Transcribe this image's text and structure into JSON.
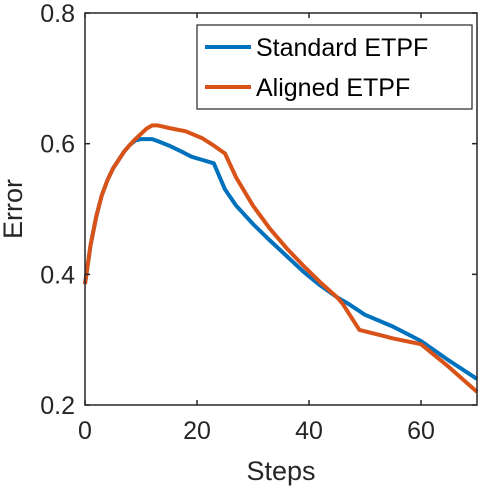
{
  "chart_data": {
    "type": "line",
    "xlabel": "Steps",
    "ylabel": "Error",
    "xlim": [
      0,
      70
    ],
    "ylim": [
      0.2,
      0.8
    ],
    "xticks": [
      0,
      20,
      40,
      60
    ],
    "yticks": [
      0.2,
      0.4,
      0.6,
      0.8
    ],
    "xtick_labels": [
      "0",
      "20",
      "40",
      "60"
    ],
    "ytick_labels": [
      "0.2",
      "0.4",
      "0.6",
      "0.8"
    ],
    "grid": false,
    "legend_position": "top-right",
    "series": [
      {
        "name": "Standard ETPF",
        "color": "#0072BD",
        "x": [
          0,
          1,
          2,
          3,
          4,
          5,
          6,
          7,
          8,
          9,
          10,
          11,
          12,
          13,
          15,
          17,
          19,
          21,
          23,
          25,
          27,
          30,
          33,
          36,
          39,
          42,
          45,
          47,
          50,
          55,
          60,
          65,
          70
        ],
        "y": [
          0.385,
          0.445,
          0.488,
          0.521,
          0.544,
          0.562,
          0.575,
          0.588,
          0.598,
          0.605,
          0.607,
          0.607,
          0.607,
          0.604,
          0.597,
          0.589,
          0.58,
          0.575,
          0.57,
          0.53,
          0.505,
          0.477,
          0.452,
          0.428,
          0.404,
          0.383,
          0.365,
          0.355,
          0.338,
          0.32,
          0.298,
          0.268,
          0.24
        ]
      },
      {
        "name": "Aligned ETPF",
        "color": "#D95319",
        "x": [
          0,
          1,
          2,
          3,
          4,
          5,
          6,
          7,
          8,
          9,
          10,
          11,
          12,
          13,
          14,
          15,
          18,
          21,
          23,
          25,
          27,
          30,
          33,
          36,
          39,
          42,
          45,
          46,
          49,
          55,
          60,
          65,
          70
        ],
        "y": [
          0.385,
          0.445,
          0.488,
          0.521,
          0.544,
          0.562,
          0.575,
          0.588,
          0.598,
          0.607,
          0.615,
          0.623,
          0.628,
          0.628,
          0.626,
          0.624,
          0.619,
          0.608,
          0.597,
          0.585,
          0.548,
          0.505,
          0.47,
          0.44,
          0.413,
          0.388,
          0.365,
          0.355,
          0.315,
          0.302,
          0.293,
          0.258,
          0.22
        ]
      }
    ]
  }
}
